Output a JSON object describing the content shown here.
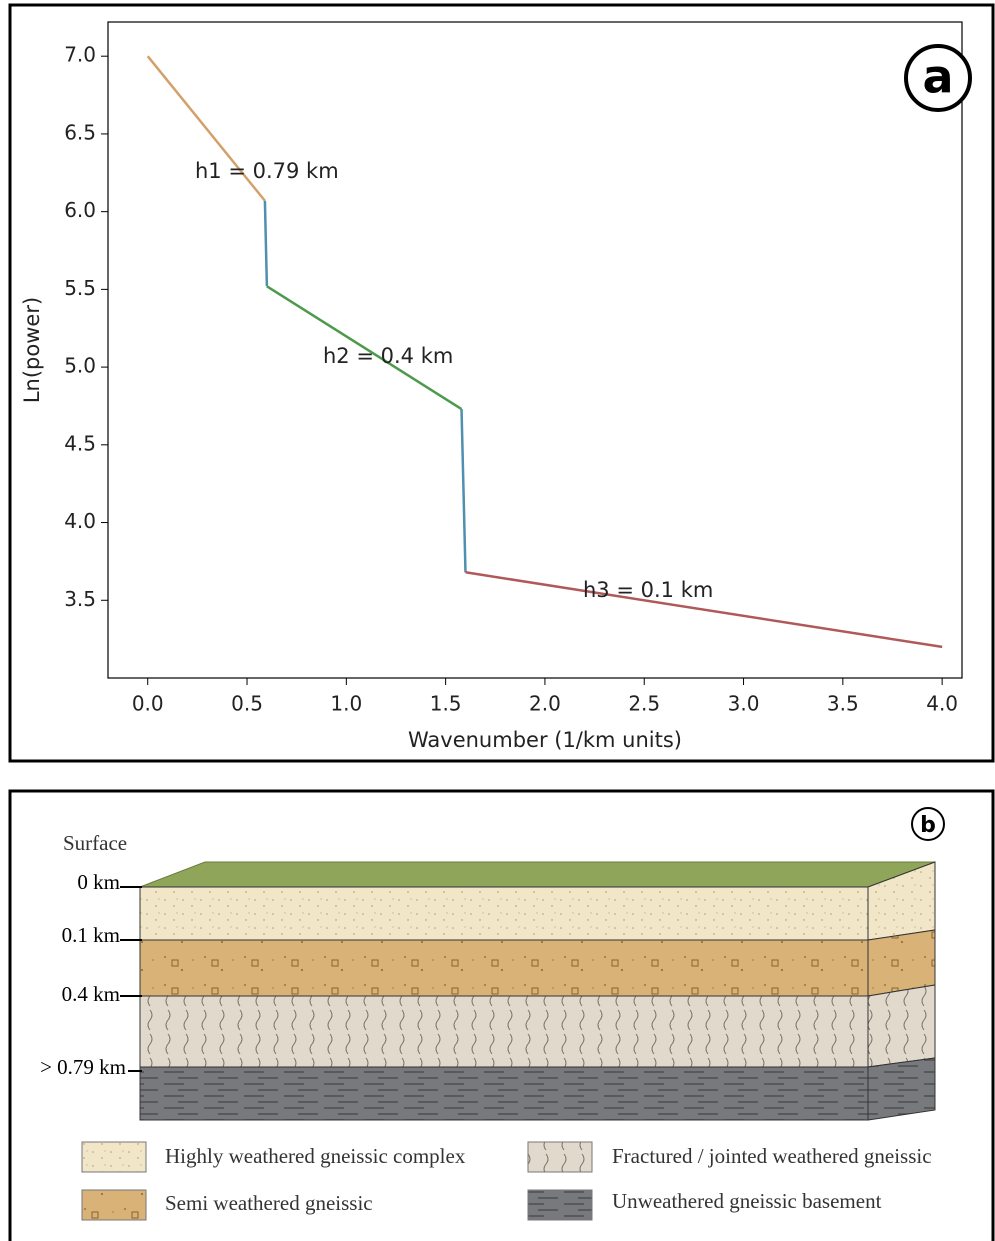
{
  "chart_data": {
    "type": "line",
    "panel_label": "a",
    "xlabel": "Wavenumber (1/km units)",
    "ylabel": "Ln(power)",
    "series": [
      {
        "color": "#d4a06a",
        "x": [
          0,
          0.59
        ],
        "values": [
          7.0,
          6.07
        ]
      },
      {
        "color": "#4f8fb0",
        "x": [
          0.59,
          0.6
        ],
        "values": [
          6.07,
          5.52
        ]
      },
      {
        "color": "#4c9a4c",
        "x": [
          0.6,
          1.58
        ],
        "values": [
          5.52,
          4.73
        ]
      },
      {
        "color": "#4f8fb0",
        "x": [
          1.58,
          1.6
        ],
        "values": [
          4.73,
          3.68
        ]
      },
      {
        "color": "#b0585a",
        "x": [
          1.6,
          4.0
        ],
        "values": [
          3.68,
          3.2
        ]
      }
    ],
    "annotations": [
      "h1 = 0.79 km",
      "h2 = 0.4 km",
      "h3 = 0.1 km"
    ],
    "xlim": [
      -0.2,
      4.1
    ],
    "xticks": [
      {
        "value": 0,
        "label": "0.0"
      },
      0.5,
      {
        "value": 1,
        "label": "1.0"
      },
      1.5,
      {
        "value": 2,
        "label": "2.0"
      },
      2.5,
      {
        "value": 3,
        "label": "3.0"
      },
      3.5,
      {
        "value": 4,
        "label": "4.0"
      }
    ],
    "ylim": [
      3.0,
      7.22
    ],
    "yticks": [
      3.5,
      {
        "value": 4,
        "label": "4.0"
      },
      4.5,
      {
        "value": 5,
        "label": "5.0"
      },
      5.5,
      {
        "value": 6,
        "label": "6.0"
      },
      6.5,
      {
        "value": 7,
        "label": "7.0"
      }
    ],
    "grid": false
  },
  "diagram": {
    "panel_label": "b",
    "surface": "Surface",
    "depths": [
      "0 km",
      "0.1 km",
      "0.4 km",
      "> 0.79 km"
    ],
    "legend": [
      "Highly weathered gneissic complex",
      "Semi weathered gneissic",
      "Fractured / jointed weathered gneissic",
      "Unweathered gneissic basement"
    ]
  }
}
